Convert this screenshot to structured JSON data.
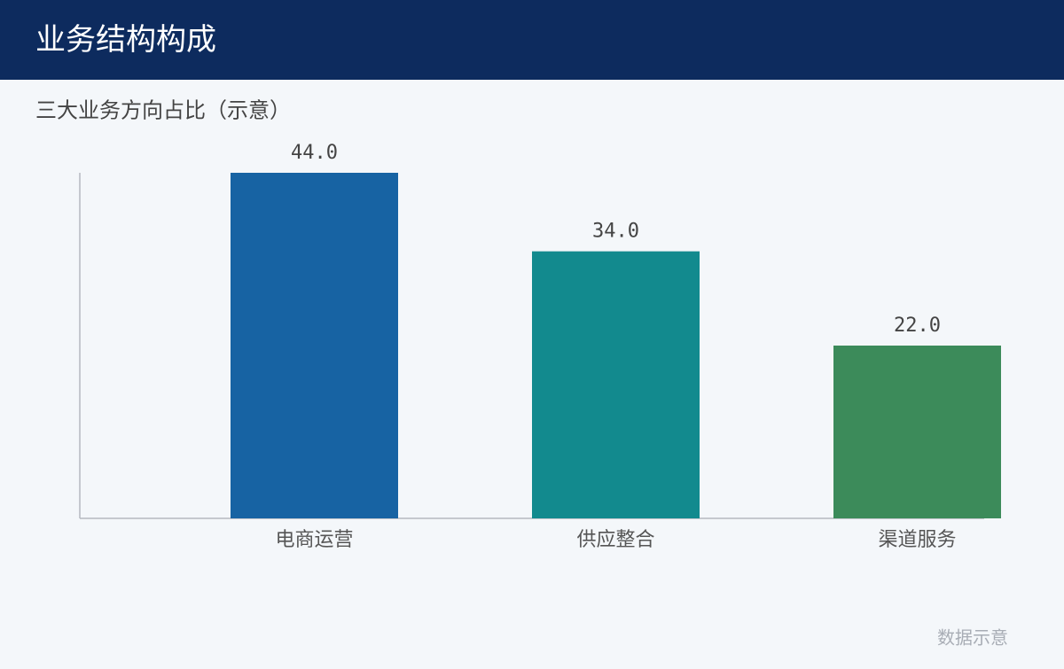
{
  "chart_data": {
    "type": "bar",
    "title": "业务结构构成",
    "subtitle": "三大业务方向占比（示意）",
    "categories": [
      "电商运营",
      "供应整合",
      "渠道服务"
    ],
    "values": [
      44,
      34,
      22
    ],
    "value_labels": [
      "44.0",
      "34.0",
      "22.0"
    ],
    "colors": [
      "#1763a3",
      "#128a8e",
      "#3c8b5a"
    ],
    "ylim": [
      0,
      44
    ],
    "grid": false,
    "note": "数据示意"
  }
}
